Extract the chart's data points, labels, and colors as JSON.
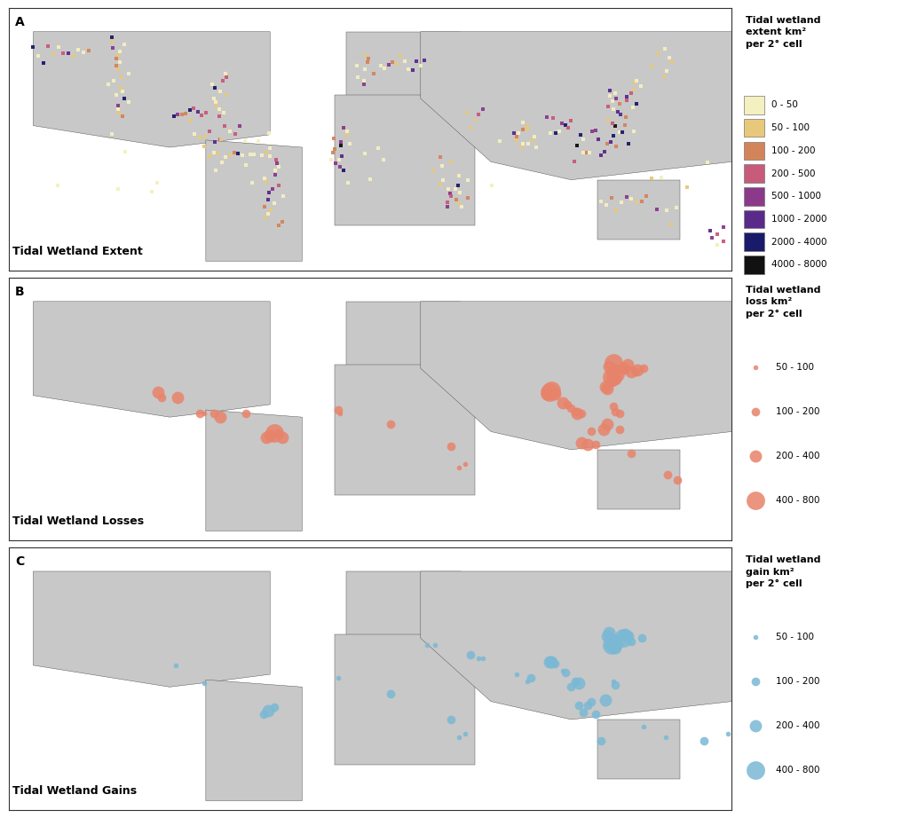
{
  "panel_A_title": "Tidal Wetland Extent",
  "panel_B_title": "Tidal Wetland Losses",
  "panel_C_title": "Tidal Wetland Gains",
  "panel_labels": [
    "A",
    "B",
    "C"
  ],
  "legend_A_title": "Tidal wetland\nextent km²\nper 2° cell",
  "legend_B_title": "Tidal wetland\nloss km²\nper 2° cell",
  "legend_C_title": "Tidal wetland\ngain km²\nper 2° cell",
  "extent_bins": [
    "0 - 50",
    "50 - 100",
    "100 - 200",
    "200 - 500",
    "500 - 1000",
    "1000 - 2000",
    "2000 - 4000",
    "4000 - 8000"
  ],
  "extent_colors": [
    "#f5f0c0",
    "#e8c87a",
    "#d4845a",
    "#c85a7a",
    "#8b3a8b",
    "#5a2a8b",
    "#1a1a6b",
    "#111111"
  ],
  "loss_bins": [
    "50 - 100",
    "100 - 200",
    "200 - 400",
    "400 - 800"
  ],
  "loss_color": "#e8836a",
  "loss_sizes_pt": [
    4,
    7,
    10,
    15
  ],
  "gain_bins": [
    "50 - 100",
    "100 - 200",
    "200 - 400",
    "400 - 800"
  ],
  "gain_color": "#7ab8d4",
  "gain_sizes_pt": [
    4,
    7,
    10,
    15
  ],
  "land_color": "#c8c8c8",
  "ocean_color": "#ffffff",
  "map_xlim": [
    -180,
    180
  ],
  "map_ylim": [
    -60,
    85
  ],
  "background": "#ffffff",
  "border_color": "#333333",
  "font_size_title": 9,
  "font_size_label": 8,
  "font_size_panel": 10
}
